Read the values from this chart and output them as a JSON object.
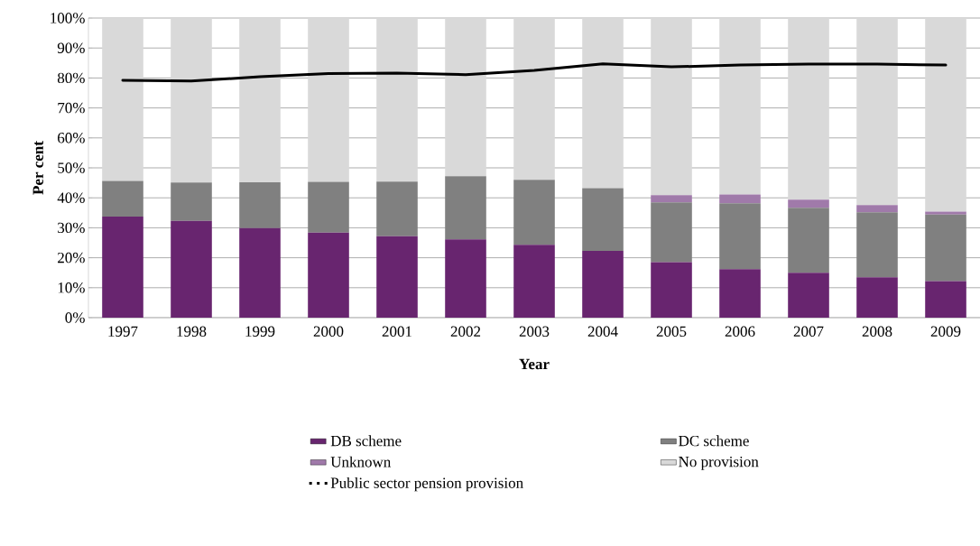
{
  "chart_data": {
    "type": "bar",
    "stacked": true,
    "xlabel": "Year",
    "ylabel": "Per cent",
    "categories": [
      "1997",
      "1998",
      "1999",
      "2000",
      "2001",
      "2002",
      "2003",
      "2004",
      "2005",
      "2006",
      "2007",
      "2008",
      "2009"
    ],
    "series": [
      {
        "name": "DB scheme",
        "color": "#68256f",
        "values": [
          33.7,
          32.3,
          29.9,
          28.4,
          27.2,
          26.1,
          24.3,
          22.3,
          18.5,
          16.2,
          15.0,
          13.5,
          12.2
        ]
      },
      {
        "name": "DC scheme",
        "color": "#808080",
        "values": [
          11.9,
          12.8,
          15.3,
          16.9,
          18.2,
          21.1,
          21.7,
          20.9,
          20.0,
          22.0,
          21.7,
          21.7,
          22.2
        ]
      },
      {
        "name": "Unknown",
        "color": "#a07aaa",
        "values": [
          0,
          0,
          0,
          0,
          0,
          0,
          0,
          0,
          2.4,
          2.9,
          2.7,
          2.4,
          1.0
        ]
      },
      {
        "name": "No provision",
        "color": "#d9d9d9",
        "values": [
          54.4,
          54.9,
          54.8,
          54.7,
          54.6,
          52.8,
          54.0,
          56.8,
          59.1,
          58.9,
          60.6,
          62.4,
          64.6
        ]
      },
      {
        "name": "Public sector pension provision",
        "type": "line",
        "color": "#000000",
        "values": [
          79.2,
          79.0,
          80.4,
          81.5,
          81.6,
          81.1,
          82.5,
          84.7,
          83.7,
          84.3,
          84.6,
          84.6,
          84.3
        ]
      }
    ],
    "ylim": [
      0,
      100
    ],
    "yticks": [
      {
        "value": 0,
        "label": "0%"
      },
      {
        "value": 10,
        "label": "10%"
      },
      {
        "value": 20,
        "label": "20%"
      },
      {
        "value": 30,
        "label": "30%"
      },
      {
        "value": 40,
        "label": "40%"
      },
      {
        "value": 50,
        "label": "50%"
      },
      {
        "value": 60,
        "label": "60%"
      },
      {
        "value": 70,
        "label": "70%"
      },
      {
        "value": 80,
        "label": "80%"
      },
      {
        "value": 90,
        "label": "90%"
      },
      {
        "value": 100,
        "label": "100%"
      }
    ],
    "grid": "y",
    "legend": "bottom",
    "marker": "none",
    "line_style": "solid"
  }
}
